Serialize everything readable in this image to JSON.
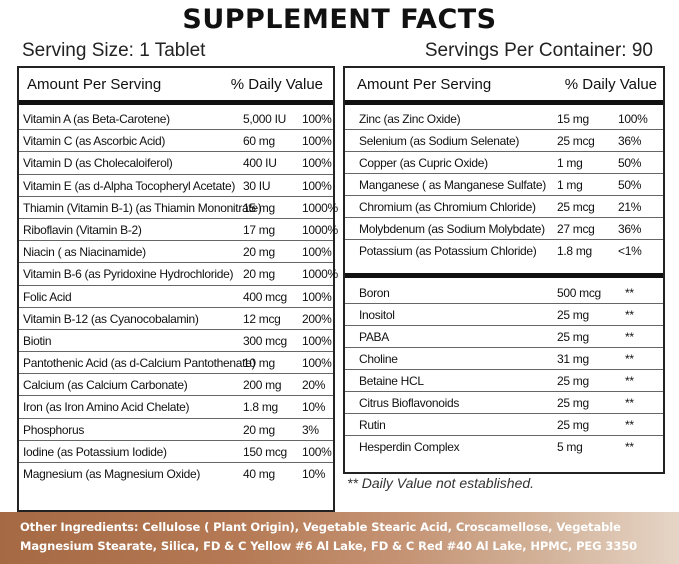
{
  "title": "SUPPLEMENT FACTS",
  "serving_size": "Serving Size: 1 Tablet",
  "servings_per_container": "Servings Per Container: 90",
  "column_headers": {
    "amount": "Amount Per Serving",
    "daily_value": "% Daily Value"
  },
  "left_table": [
    {
      "name": "Vitamin A (as Beta-Carotene)",
      "amount": "5,000 IU",
      "dv": "100%"
    },
    {
      "name": "Vitamin C (as Ascorbic Acid)",
      "amount": "60 mg",
      "dv": "100%"
    },
    {
      "name": "Vitamin D (as Cholecaloiferol)",
      "amount": "400 IU",
      "dv": "100%"
    },
    {
      "name": "Vitamin E (as d-Alpha Tocopheryl Acetate)",
      "amount": "30 IU",
      "dv": "100%"
    },
    {
      "name": "Thiamin (Vitamin B-1) (as Thiamin Mononitrate)",
      "amount": "15 mg",
      "dv": "1000%"
    },
    {
      "name": "Riboflavin (Vitamin B-2)",
      "amount": "17 mg",
      "dv": "1000%"
    },
    {
      "name": "Niacin ( as Niacinamide)",
      "amount": "20 mg",
      "dv": "100%"
    },
    {
      "name": "Vitamin B-6 (as Pyridoxine Hydrochloride)",
      "amount": "20 mg",
      "dv": "1000%"
    },
    {
      "name": "Folic Acid",
      "amount": "400 mcg",
      "dv": "100%"
    },
    {
      "name": "Vitamin B-12 (as Cyanocobalamin)",
      "amount": "12 mcg",
      "dv": "200%"
    },
    {
      "name": "Biotin",
      "amount": "300 mcg",
      "dv": "100%"
    },
    {
      "name": "Pantothenic Acid (as d-Calcium Pantothenate)",
      "amount": "10 mg",
      "dv": "100%"
    },
    {
      "name": "Calcium (as Calcium Carbonate)",
      "amount": "200 mg",
      "dv": "20%"
    },
    {
      "name": "Iron (as Iron Amino Acid Chelate)",
      "amount": "1.8 mg",
      "dv": "10%"
    },
    {
      "name": "Phosphorus",
      "amount": "20 mg",
      "dv": "3%"
    },
    {
      "name": "Iodine (as Potassium Iodide)",
      "amount": "150 mcg",
      "dv": "100%"
    },
    {
      "name": "Magnesium (as Magnesium Oxide)",
      "amount": "40 mg",
      "dv": "10%"
    }
  ],
  "right_table_minerals": [
    {
      "name": "Zinc (as Zinc Oxide)",
      "amount": "15 mg",
      "dv": "100%"
    },
    {
      "name": "Selenium (as Sodium Selenate)",
      "amount": "25 mcg",
      "dv": "36%"
    },
    {
      "name": "Copper (as Cupric Oxide)",
      "amount": "1 mg",
      "dv": "50%"
    },
    {
      "name": "Manganese ( as Manganese Sulfate)",
      "amount": "1 mg",
      "dv": "50%"
    },
    {
      "name": "Chromium (as Chromium Chloride)",
      "amount": "25 mcg",
      "dv": "21%"
    },
    {
      "name": "Molybdenum (as Sodium Molybdate)",
      "amount": "27 mcg",
      "dv": "36%"
    },
    {
      "name": "Potassium (as Potassium Chloride)",
      "amount": "1.8 mg",
      "dv": "<1%"
    }
  ],
  "right_table_other": [
    {
      "name": "Boron",
      "amount": "500 mcg",
      "dv": "**"
    },
    {
      "name": "Inositol",
      "amount": "25 mg",
      "dv": "**"
    },
    {
      "name": "PABA",
      "amount": "25 mg",
      "dv": "**"
    },
    {
      "name": "Choline",
      "amount": "31 mg",
      "dv": "**"
    },
    {
      "name": "Betaine HCL",
      "amount": "25 mg",
      "dv": "**"
    },
    {
      "name": "Citrus Bioflavonoids",
      "amount": "25 mg",
      "dv": "**"
    },
    {
      "name": "Rutin",
      "amount": "25 mg",
      "dv": "**"
    },
    {
      "name": "Hesperdin Complex",
      "amount": "5 mg",
      "dv": "**"
    }
  ],
  "dv_note": "** Daily Value not established.",
  "other_ingredients": "Other Ingredients: Cellulose ( Plant Origin), Vegetable Stearic Acid, Croscamellose, Vegetable Magnesium Stearate, Silica, FD & C Yellow #6 Al Lake, FD & C Red #40 Al Lake, HPMC, PEG 3350",
  "colors": {
    "footer_start": "#a56a44",
    "footer_end": "#e6d5c6",
    "rule": "#111111"
  }
}
